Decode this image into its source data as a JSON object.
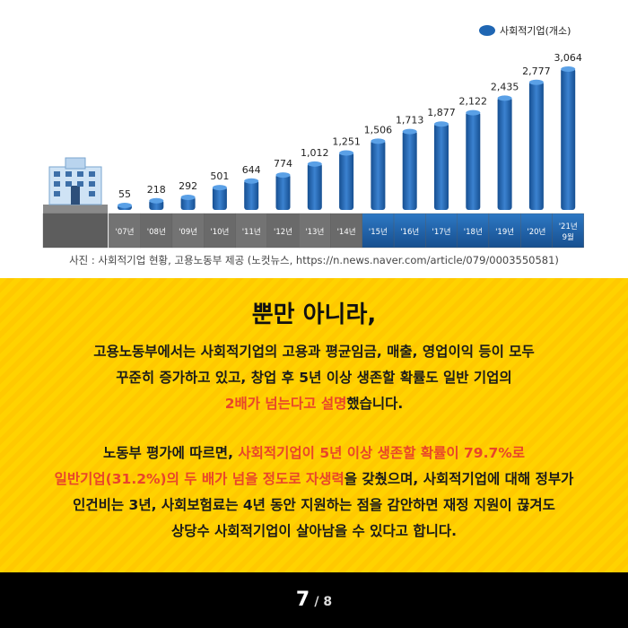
{
  "chart_data": {
    "type": "bar",
    "legend": "사회적기업(개소)",
    "legend_position": "top-right",
    "categories": [
      "'07년",
      "'08년",
      "'09년",
      "'10년",
      "'11년",
      "'12년",
      "'13년",
      "'14년",
      "'15년",
      "'16년",
      "'17년",
      "'18년",
      "'19년",
      "'20년",
      "'21년 9월"
    ],
    "values": [
      55,
      218,
      292,
      501,
      644,
      774,
      1012,
      1251,
      1506,
      1713,
      1877,
      2122,
      2435,
      2777,
      3064
    ],
    "value_labels": [
      "55",
      "218",
      "292",
      "501",
      "644",
      "774",
      "1,012",
      "1,251",
      "1,506",
      "1,713",
      "1,877",
      "2,122",
      "2,435",
      "2,777",
      "3,064"
    ],
    "ylim": [
      0,
      3064
    ],
    "grid": false,
    "colors": {
      "bar": "#1f66b3",
      "bar_top": "#4f8fd6",
      "axis_gray": "#6d6d6d",
      "axis_blue": "#1f63a8"
    }
  },
  "caption": "사진 : 사회적기업 현황, 고용노동부 제공 (노컷뉴스, https://n.news.naver.com/article/079/0003550581)",
  "heading": "뿐만 아니라,",
  "para1": [
    [
      {
        "t": "고용노동부에서는  사회적기업의 고용과 평균임금, 매출, 영업이익 등이 모두"
      }
    ],
    [
      {
        "t": "꾸준히  증가하고 있고, 창업 후 5년 이상 생존할 확률도 일반 기업의"
      }
    ],
    [
      {
        "t": "2배가 넘는다고 설명",
        "hl": true
      },
      {
        "t": "했습니다."
      }
    ]
  ],
  "para2": [
    [
      {
        "t": "노동부 평가에 따르면, "
      },
      {
        "t": "사회적기업이 5년 이상 생존할 확률이 79.7%로",
        "hl": true
      }
    ],
    [
      {
        "t": "일반기업(31.2%)의 두 배가 넘을 정도로 자생력",
        "hl": true
      },
      {
        "t": "을 갖췄으며, 사회적기업에 대해 정부가"
      }
    ],
    [
      {
        "t": "인건비는 3년, 사회보험료는 4년 동안 지원하는 점을 감안하면 재정 지원이 끊겨도"
      }
    ],
    [
      {
        "t": "상당수 사회적기업이 살아남을 수 있다고 합니다."
      }
    ]
  ],
  "page": {
    "current": "7",
    "separator": "/ 8"
  },
  "colors": {
    "highlight": "#e8452a",
    "banner": "#ffd200",
    "footer": "#000000"
  }
}
